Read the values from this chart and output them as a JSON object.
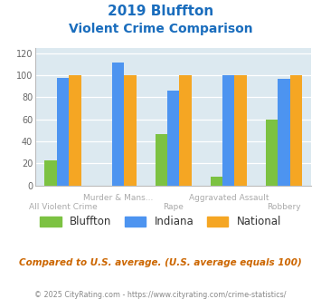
{
  "title_line1": "2019 Bluffton",
  "title_line2": "Violent Crime Comparison",
  "categories": [
    "All Violent Crime",
    "Murder & Mans...",
    "Rape",
    "Aggravated Assault",
    "Robbery"
  ],
  "bluffton": [
    23,
    0,
    47,
    8,
    60
  ],
  "indiana": [
    98,
    112,
    86,
    100,
    97
  ],
  "national": [
    100,
    100,
    100,
    100,
    100
  ],
  "colors": {
    "bluffton": "#7cc242",
    "indiana": "#4d94f0",
    "national": "#f5a623"
  },
  "ylim": [
    0,
    125
  ],
  "yticks": [
    0,
    20,
    40,
    60,
    80,
    100,
    120
  ],
  "background_color": "#dce9f0",
  "footer_note": "Compared to U.S. average. (U.S. average equals 100)",
  "copyright": "© 2025 CityRating.com - https://www.cityrating.com/crime-statistics/",
  "title_color": "#1a6dbd",
  "footer_color": "#cc6600",
  "copyright_color": "#888888",
  "xlabel_color": "#aaaaaa",
  "top_labels": [
    "",
    "Murder & Mans...",
    "",
    "Aggravated Assault",
    ""
  ],
  "bottom_labels": [
    "All Violent Crime",
    "",
    "Rape",
    "",
    "Robbery"
  ]
}
